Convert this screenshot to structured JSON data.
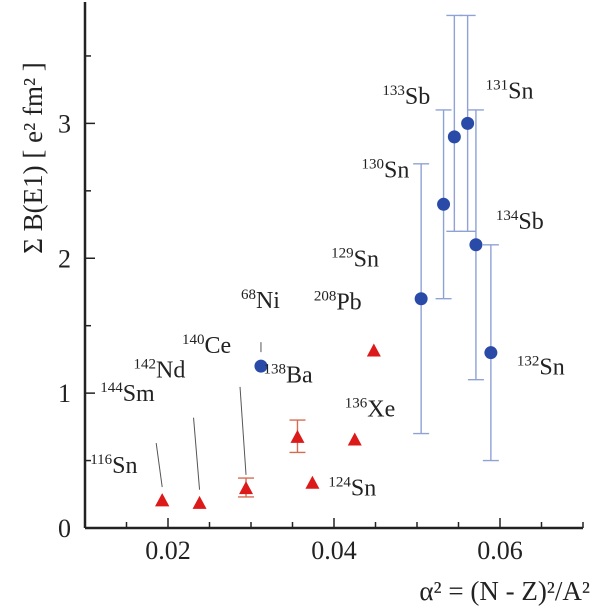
{
  "chart_data": {
    "type": "scatter",
    "xlabel": "α² = (N - Z)²/A²",
    "ylabel": "Σ B(E1) [ e² fm² ]",
    "xlim": [
      0.01,
      0.07
    ],
    "ylim": [
      0,
      3.9
    ],
    "x_ticks": [
      0.02,
      0.04,
      0.06
    ],
    "x_tick_labels": [
      "0.02",
      "0.04",
      "0.06"
    ],
    "y_ticks": [
      0,
      1,
      2,
      3
    ],
    "y_tick_labels": [
      "0",
      "1",
      "2",
      "3"
    ],
    "grid": false,
    "legend": "none",
    "colors": {
      "circle": "#2a4aa8",
      "triangle": "#dd1a1a",
      "circle_error": "#8fa2d6",
      "triangle_error": "#d86a50",
      "axis": "#222222",
      "leader": "#555555"
    },
    "series": [
      {
        "marker": "circle",
        "points": [
          {
            "mass": "68",
            "symbol": "Ni",
            "x": 0.0312,
            "y": 1.2
          },
          {
            "mass": "129",
            "symbol": "Sn",
            "x": 0.0505,
            "y": 1.7,
            "y_err": [
              0.7,
              2.7
            ]
          },
          {
            "mass": "130",
            "symbol": "Sn",
            "x": 0.0532,
            "y": 2.4,
            "y_err": [
              1.7,
              3.1
            ]
          },
          {
            "mass": "133",
            "symbol": "Sb",
            "x": 0.0545,
            "y": 2.9,
            "y_err": [
              2.2,
              3.8
            ]
          },
          {
            "mass": "131",
            "symbol": "Sn",
            "x": 0.0561,
            "y": 3.0,
            "y_err": [
              2.2,
              3.8
            ]
          },
          {
            "mass": "134",
            "symbol": "Sb",
            "x": 0.0571,
            "y": 2.1,
            "y_err": [
              1.1,
              3.1
            ]
          },
          {
            "mass": "132",
            "symbol": "Sn",
            "x": 0.0589,
            "y": 1.3,
            "y_err": [
              0.5,
              2.1
            ]
          }
        ]
      },
      {
        "marker": "triangle",
        "points": [
          {
            "mass": "116",
            "symbol": "Sn",
            "x": 0.0193,
            "y": 0.2
          },
          {
            "mass": "144",
            "symbol": "Sm",
            "x": 0.0193,
            "y": 0.2
          },
          {
            "mass": "142",
            "symbol": "Nd",
            "x": 0.0238,
            "y": 0.18
          },
          {
            "mass": "140",
            "symbol": "Ce",
            "x": 0.0294,
            "y": 0.29,
            "y_err": [
              0.23,
              0.37
            ]
          },
          {
            "mass": "138",
            "symbol": "Ba",
            "x": 0.0356,
            "y": 0.67,
            "y_err": [
              0.56,
              0.8
            ]
          },
          {
            "mass": "124",
            "symbol": "Sn",
            "x": 0.0374,
            "y": 0.33
          },
          {
            "mass": "136",
            "symbol": "Xe",
            "x": 0.0425,
            "y": 0.65
          },
          {
            "mass": "208",
            "symbol": "Pb",
            "x": 0.0448,
            "y": 1.31
          }
        ]
      }
    ]
  }
}
